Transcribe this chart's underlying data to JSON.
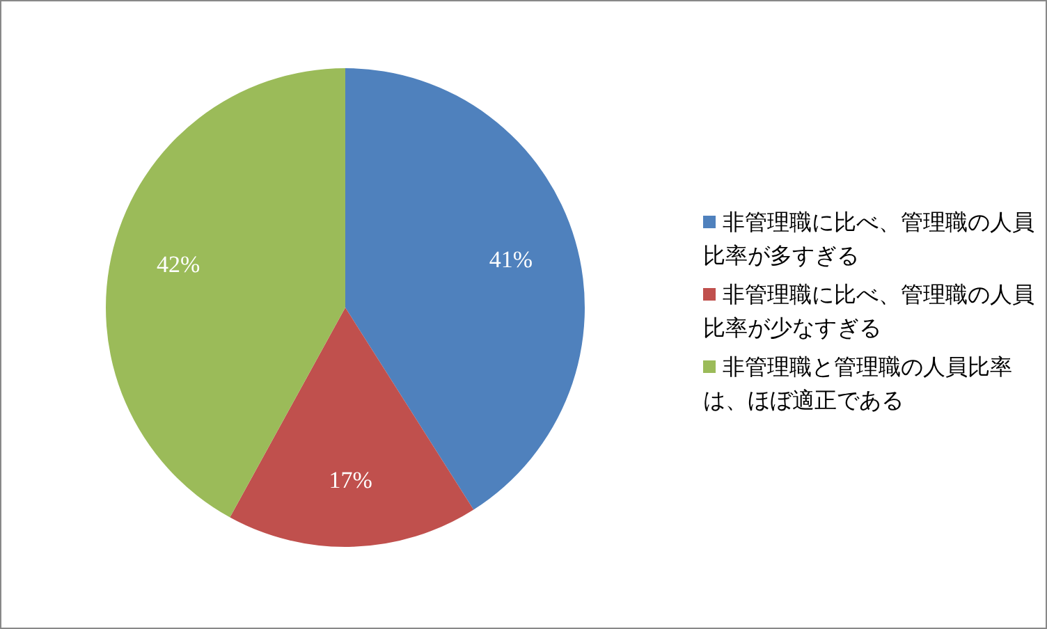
{
  "chart_data": {
    "type": "pie",
    "categories": [
      "非管理職に比べ、管理職の人員比率が多すぎる",
      "非管理職に比べ、管理職の人員比率が少なすぎる",
      "非管理職と管理職の人員比率は、ほぼ適正である"
    ],
    "values": [
      41,
      17,
      42
    ],
    "value_labels": [
      "41%",
      "17%",
      "42%"
    ],
    "colors": [
      "#4f81bd",
      "#c0504d",
      "#9bbb59"
    ],
    "legend": "right"
  }
}
